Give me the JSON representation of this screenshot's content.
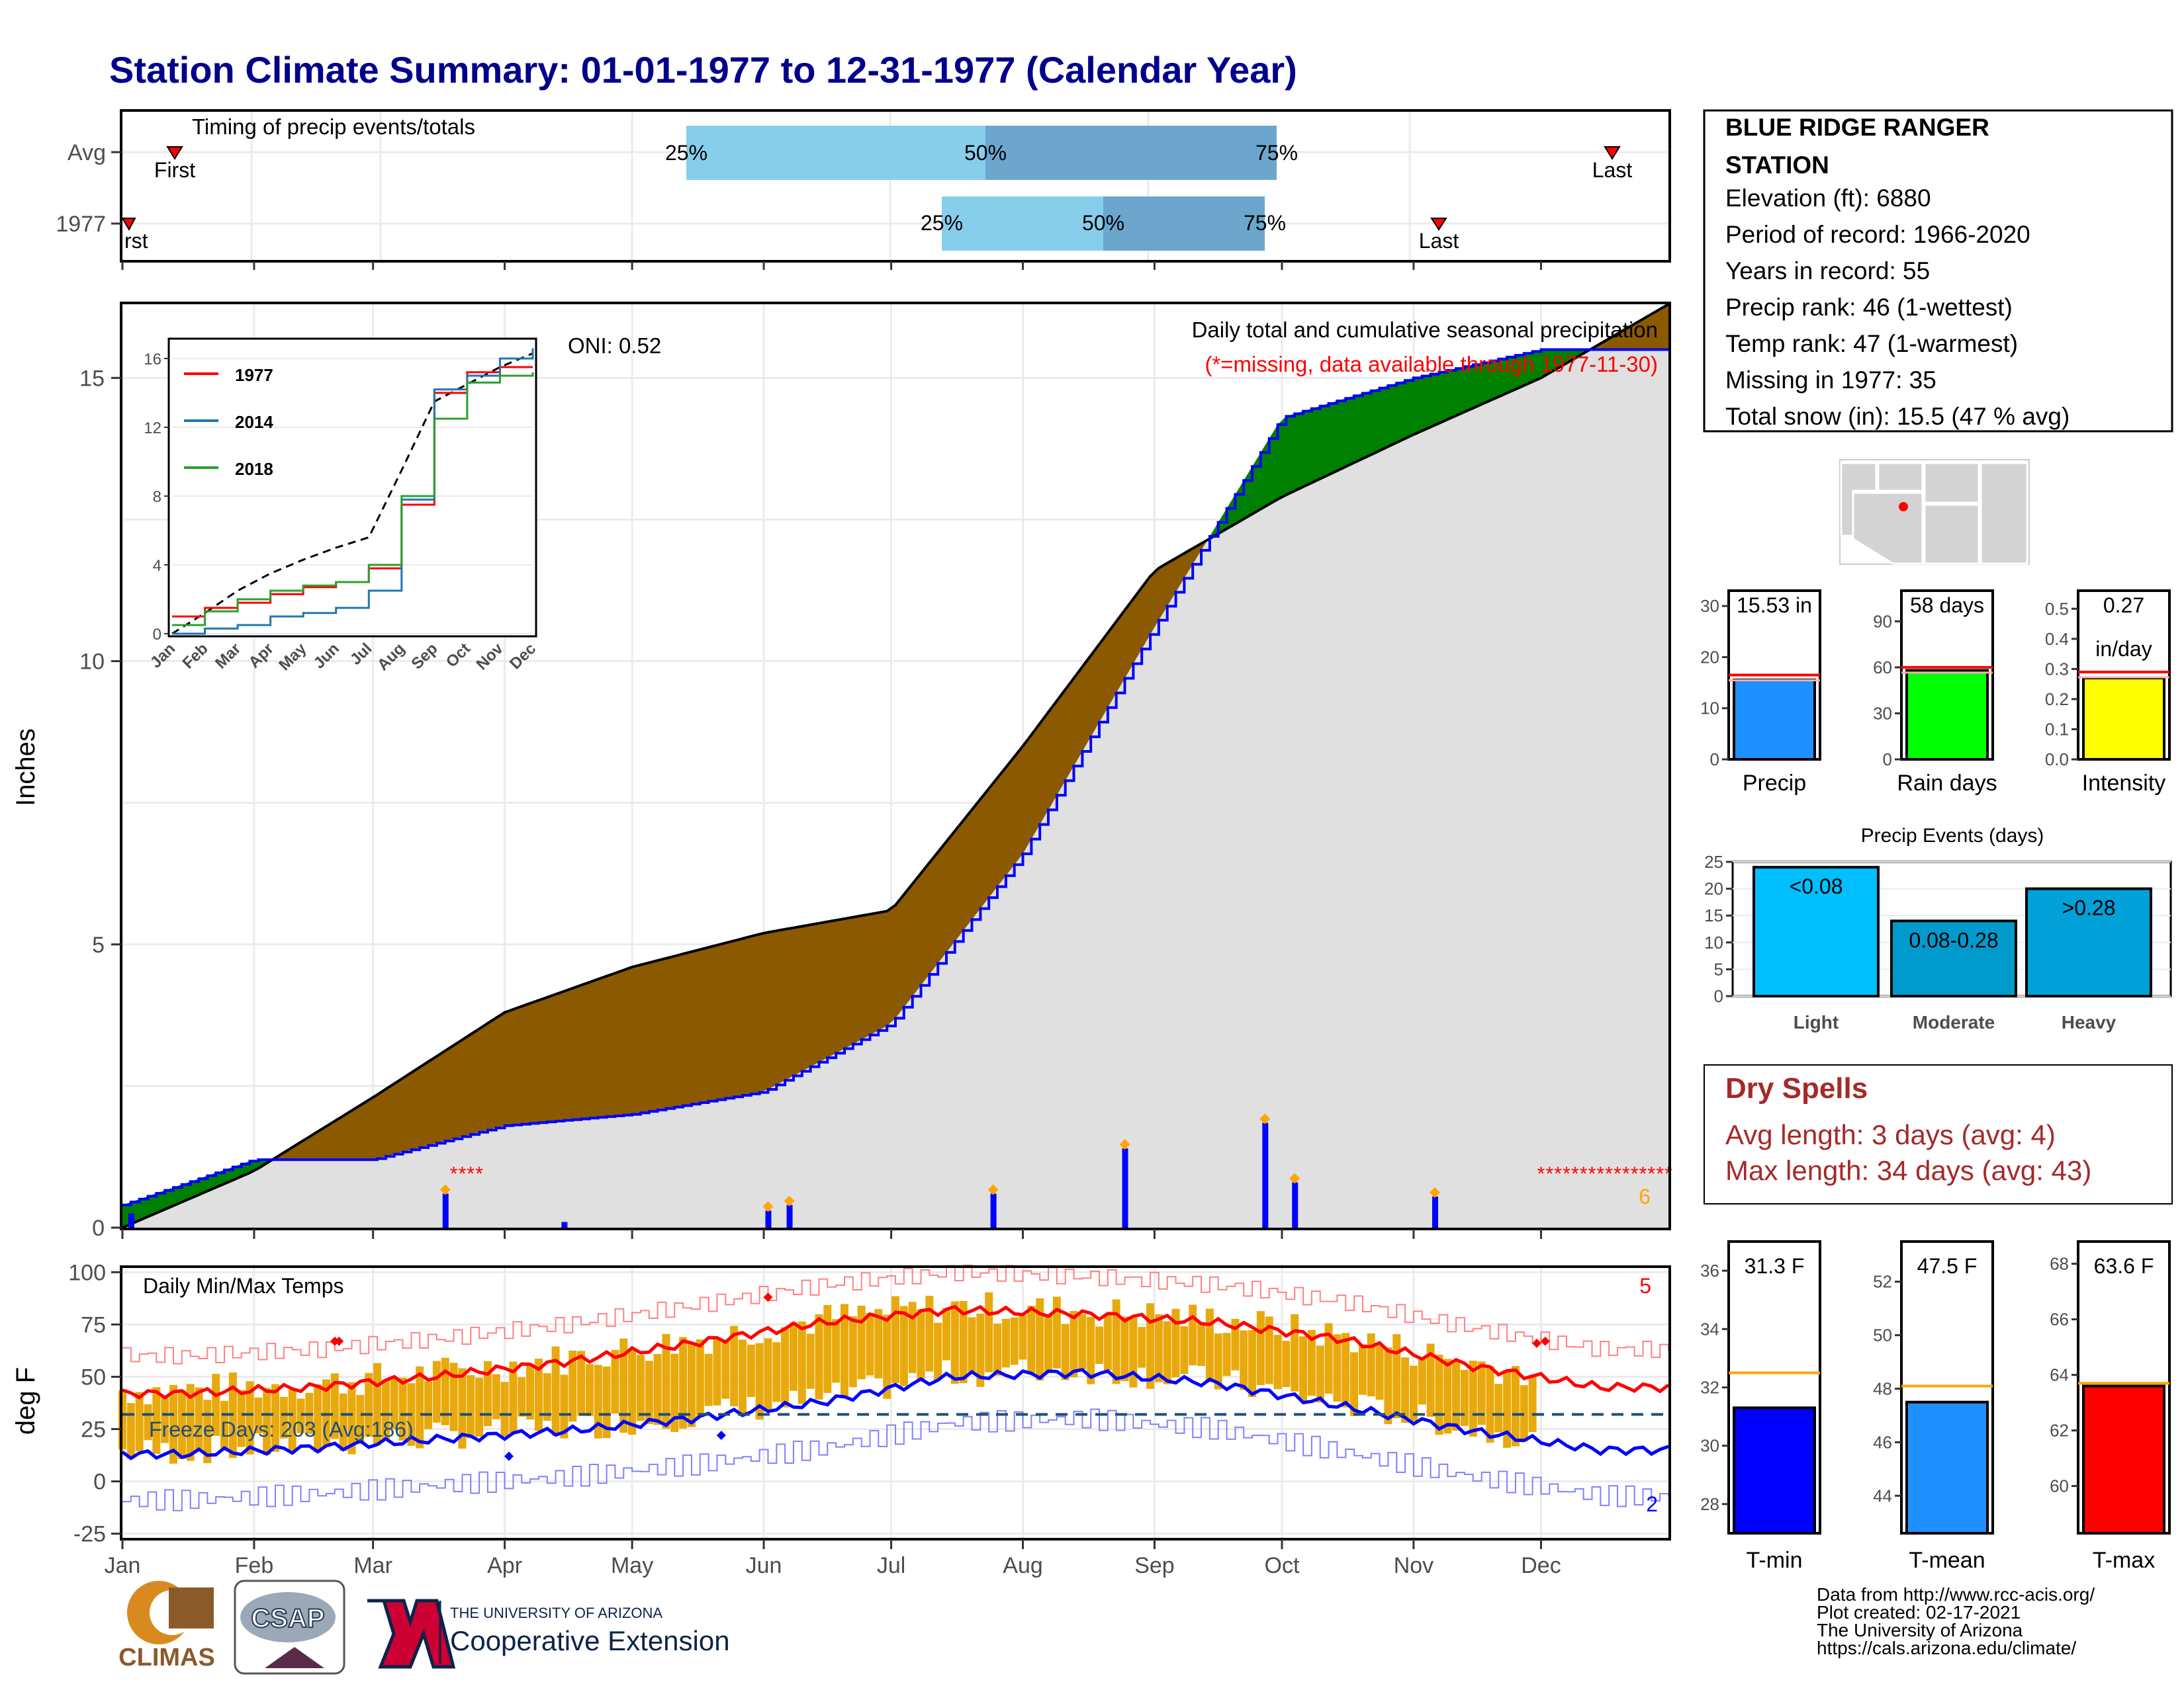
{
  "title": "Station Climate Summary: 01-01-1977 to 12-31-1977 (Calendar Year)",
  "months": [
    "Jan",
    "Feb",
    "Mar",
    "Apr",
    "May",
    "Jun",
    "Jul",
    "Aug",
    "Sep",
    "Oct",
    "Nov",
    "Dec"
  ],
  "station": {
    "name_line1": "BLUE RIDGE RANGER",
    "name_line2": "STATION",
    "elevation": "Elevation (ft): 6880",
    "period": "Period of record: 1966-2020",
    "years": "Years in record: 55",
    "precip_rank": "Precip rank: 46 (1-wettest)",
    "temp_rank": "Temp rank: 47 (1-warmest)",
    "missing": "Missing in 1977: 35",
    "snow": "Total snow (in): 15.5 (47 % avg)"
  },
  "colors": {
    "title": "#00008B",
    "deficit": "#8B5A00",
    "surplus": "#008000",
    "current": "#0000FF",
    "normal_fill": "#E0E0E0",
    "pct_light": "#87CEEB",
    "pct_dark": "#6CA6CD",
    "tmax": "#FF0000",
    "tmin": "#0000FF",
    "bars_temp": "#E8A90C",
    "dry_spell": "#A52A2A"
  },
  "timing": {
    "title": "Timing of precip events/totals",
    "rows": [
      "Avg",
      "1977"
    ],
    "first_label": "First",
    "first_label_clipped": "rst",
    "last_label": "Last",
    "p25": "25%",
    "p50": "50%",
    "p75": "75%"
  },
  "precip_panel": {
    "ylabel": "Inches",
    "header": "Daily total and cumulative seasonal precipitation",
    "missing_note": "(*=missing, data available through 1977-11-30)",
    "oni": "ONI: 0.52",
    "count_label": "6",
    "yticks": [
      "0",
      "5",
      "10",
      "15"
    ]
  },
  "inset": {
    "legend": [
      "1977",
      "2014",
      "2018"
    ],
    "yticks": [
      "0",
      "4",
      "8",
      "12",
      "16"
    ]
  },
  "temp_panel": {
    "ylabel": "deg F",
    "title": "Daily Min/Max Temps",
    "freeze": "Freeze Days: 203 (Avg:186)",
    "count_max": "5",
    "count_min": "2",
    "yticks": [
      "-25",
      "0",
      "25",
      "50",
      "75",
      "100"
    ]
  },
  "precip_bars": {
    "yticks": [
      "0",
      "10",
      "20",
      "30"
    ],
    "value_label": "15.53 in",
    "xlabel": "Precip"
  },
  "raindays_bars": {
    "yticks": [
      "0",
      "30",
      "60",
      "90"
    ],
    "value_label": "58 days",
    "xlabel": "Rain days"
  },
  "intensity_bars": {
    "yticks": [
      "0.0",
      "0.1",
      "0.2",
      "0.3",
      "0.4",
      "0.5"
    ],
    "value_line1": "0.27",
    "value_line2": "in/day",
    "xlabel": "Intensity"
  },
  "events_panel": {
    "title": "Precip Events (days)",
    "yticks": [
      "0",
      "5",
      "10",
      "15",
      "20",
      "25"
    ],
    "bars": [
      {
        "label": "Light",
        "inner": "<0.08",
        "value": 24
      },
      {
        "label": "Moderate",
        "inner": "0.08-0.28",
        "value": 14
      },
      {
        "label": "Heavy",
        "inner": ">0.28",
        "value": 20
      }
    ]
  },
  "dry_spells": {
    "title": "Dry Spells",
    "avg": "Avg length: 3 days (avg: 4)",
    "max": "Max length: 34 days (avg: 43)"
  },
  "temp_bars": [
    {
      "value_label": "31.3 F",
      "xlabel": "T-min",
      "yticks": [
        "28",
        "30",
        "32",
        "34",
        "36"
      ]
    },
    {
      "value_label": "47.5 F",
      "xlabel": "T-mean",
      "yticks": [
        "44",
        "46",
        "48",
        "50",
        "52"
      ]
    },
    {
      "value_label": "63.6 F",
      "xlabel": "T-max",
      "yticks": [
        "60",
        "62",
        "64",
        "66",
        "68"
      ]
    }
  ],
  "footer": {
    "line1": "Data from http://www.rcc-acis.org/",
    "line2": "Plot created: 02-17-2021",
    "line3": "The University of Arizona",
    "line4": "https://cals.arizona.edu/climate/"
  },
  "logos": {
    "climas": "CLIMAS",
    "csap": "CSAP",
    "ua_small": "THE UNIVERSITY OF ARIZONA",
    "ua_big": "Cooperative Extension"
  },
  "chart_data": [
    {
      "type": "area",
      "title": "Daily total and cumulative seasonal precipitation",
      "ylabel": "Inches",
      "ylim": [
        0,
        16.3
      ],
      "x": [
        "Jan 1",
        "Feb 1",
        "Mar 1",
        "Apr 1",
        "May 1",
        "Jun 1",
        "Jul 1",
        "Aug 1",
        "Sep 1",
        "Oct 1",
        "Nov 1",
        "Dec 1",
        "Dec 31"
      ],
      "series": [
        {
          "name": "1977",
          "values": [
            0.4,
            1.2,
            1.2,
            1.8,
            2.0,
            2.4,
            3.6,
            6.6,
            10.6,
            14.3,
            15.0,
            15.5,
            15.5
          ]
        },
        {
          "name": "Avg",
          "values": [
            0,
            1.0,
            2.3,
            3.8,
            4.6,
            5.2,
            5.6,
            8.5,
            11.6,
            12.9,
            14.0,
            15.0,
            16.3
          ]
        }
      ],
      "daily_precip": [
        {
          "date": "Jan 3",
          "value": 0.25
        },
        {
          "date": "Mar 18",
          "value": 0.6
        },
        {
          "date": "Apr 15",
          "value": 0.1
        },
        {
          "date": "Jun 2",
          "value": 0.3
        },
        {
          "date": "Jun 7",
          "value": 0.4
        },
        {
          "date": "Jul 25",
          "value": 0.6
        },
        {
          "date": "Aug 25",
          "value": 1.4
        },
        {
          "date": "Sep 27",
          "value": 1.85
        },
        {
          "date": "Oct 4",
          "value": 0.8
        },
        {
          "date": "Nov 6",
          "value": 0.55
        }
      ]
    },
    {
      "type": "line",
      "title": "",
      "ylim": [
        0,
        17
      ],
      "categories": [
        "Jan",
        "Feb",
        "Mar",
        "Apr",
        "May",
        "Jun",
        "Jul",
        "Aug",
        "Sep",
        "Oct",
        "Nov",
        "Dec"
      ],
      "series": [
        {
          "name": "1977",
          "values": [
            1.0,
            1.5,
            1.8,
            2.3,
            2.7,
            3.0,
            3.8,
            7.5,
            14.0,
            15.2,
            15.5,
            15.5
          ]
        },
        {
          "name": "2014",
          "values": [
            0.0,
            0.3,
            0.5,
            1.0,
            1.2,
            1.5,
            2.5,
            7.8,
            14.2,
            15.0,
            16.0,
            16.6
          ]
        },
        {
          "name": "2018",
          "values": [
            0.5,
            1.3,
            2.0,
            2.5,
            2.8,
            3.0,
            4.0,
            8.0,
            12.5,
            14.6,
            15.0,
            15.2
          ]
        }
      ]
    },
    {
      "type": "line",
      "title": "Daily Min/Max Temps",
      "ylabel": "deg F",
      "ylim": [
        -27,
        102
      ],
      "categories": [
        "Jan",
        "Feb",
        "Mar",
        "Apr",
        "May",
        "Jun",
        "Jul",
        "Aug",
        "Sep",
        "Oct",
        "Nov",
        "Dec"
      ],
      "series": [
        {
          "name": "Avg Tmax",
          "values": [
            42,
            45,
            50,
            57,
            66,
            76,
            82,
            80,
            76,
            68,
            55,
            45
          ]
        },
        {
          "name": "Avg Tmin",
          "values": [
            13,
            16,
            20,
            24,
            30,
            38,
            50,
            52,
            47,
            36,
            24,
            15
          ]
        },
        {
          "name": "Freeze line",
          "values": [
            32,
            32,
            32,
            32,
            32,
            32,
            32,
            32,
            32,
            32,
            32,
            32
          ]
        }
      ]
    },
    {
      "type": "bar",
      "title": "Precip Events (days)",
      "categories": [
        "Light",
        "Moderate",
        "Heavy"
      ],
      "values": [
        24,
        14,
        20
      ],
      "ylim": [
        0,
        25
      ]
    },
    {
      "type": "bar",
      "categories": [
        "Precip",
        "Rain days",
        "Intensity",
        "T-min",
        "T-mean",
        "T-max"
      ],
      "values": [
        15.53,
        58,
        0.27,
        31.3,
        47.5,
        63.6
      ]
    }
  ]
}
